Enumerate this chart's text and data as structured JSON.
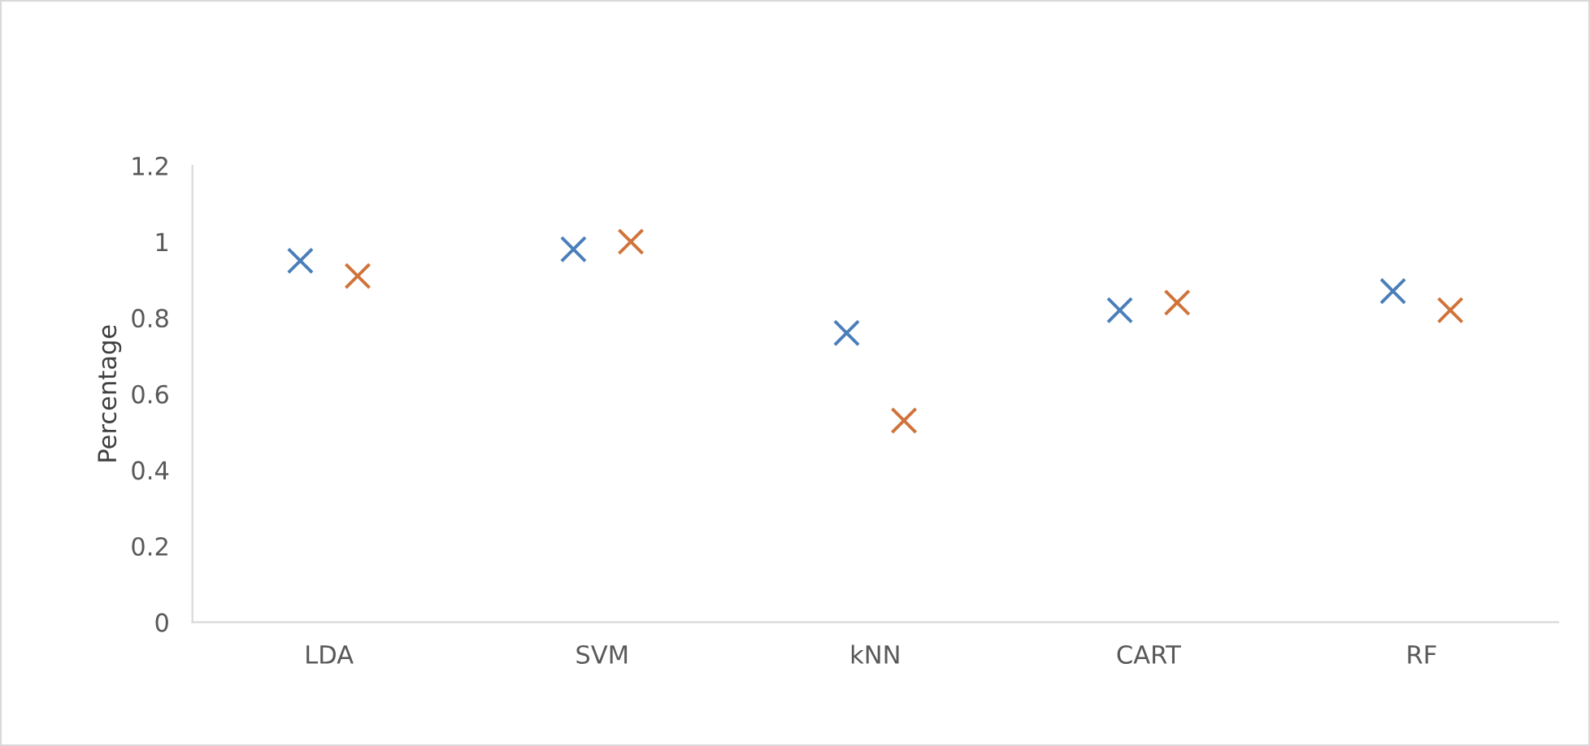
{
  "chart_data": {
    "type": "scatter",
    "ylabel": "Percentage",
    "categories": [
      "LDA",
      "SVM",
      "kNN",
      "CART",
      "RF"
    ],
    "series": [
      {
        "color": "#4a7ebb",
        "values": [
          0.95,
          0.98,
          0.76,
          0.82,
          0.87
        ]
      },
      {
        "color": "#d0733a",
        "values": [
          0.91,
          1.0,
          0.53,
          0.84,
          0.82
        ]
      }
    ],
    "ylim": [
      0,
      1.2
    ],
    "yticks": [
      0,
      0.2,
      0.4,
      0.6,
      0.8,
      1,
      1.2
    ],
    "grid": false,
    "legend": false,
    "marker": "cross"
  }
}
